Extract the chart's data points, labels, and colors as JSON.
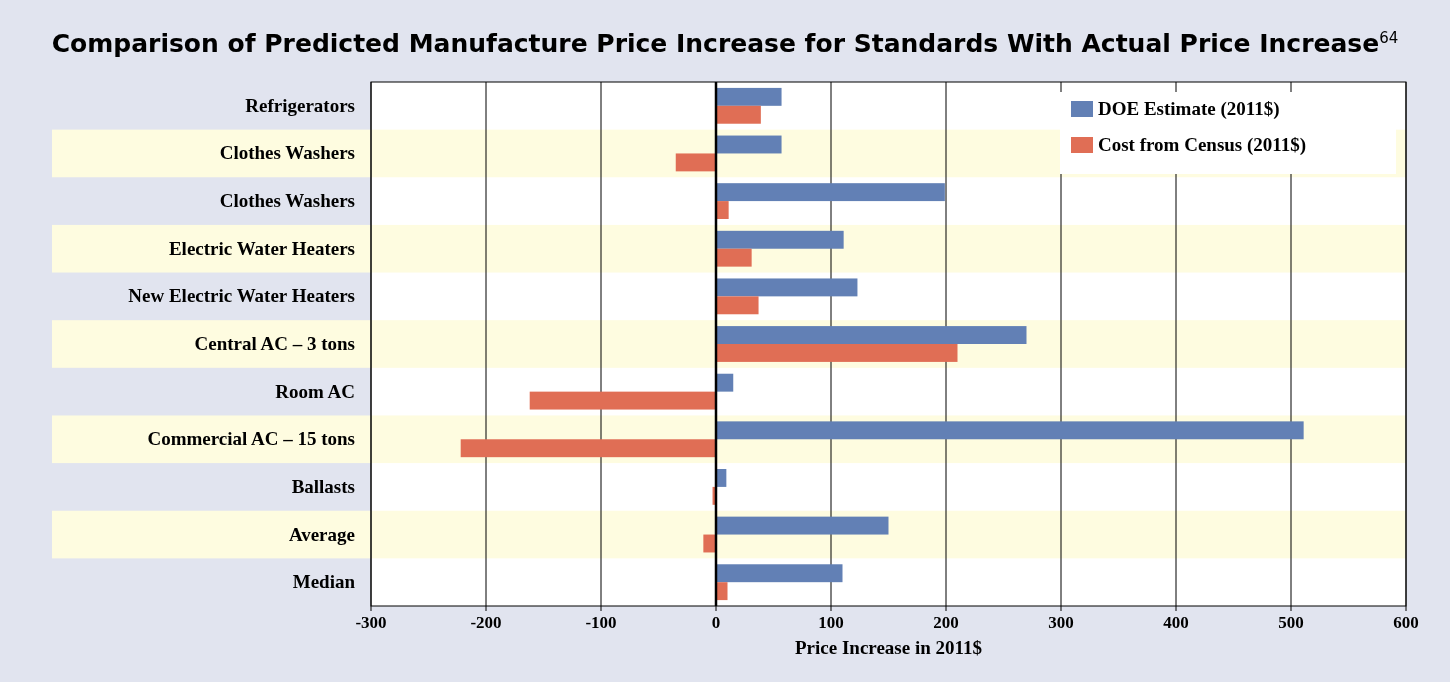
{
  "chart_data": {
    "type": "bar",
    "orientation": "horizontal",
    "title": "Comparison of Predicted Manufacture Price Increase for Standards With Actual Price Increase$^{64}$",
    "xlabel": "Price Increase in 2011$",
    "categories": [
      "Refrigerators",
      "Clothes Washers",
      "Clothes Washers",
      "Electric Water Heaters",
      "New Electric Water Heaters",
      "Central AC – 3 tons",
      "Room AC",
      "Commercial AC – 15 tons",
      "Ballasts",
      "Average",
      "Median"
    ],
    "series": [
      {
        "name": "DOE Estimate (2011$)",
        "color": "#6280b5",
        "values": [
          57,
          57,
          199,
          111,
          123,
          270,
          15,
          511,
          9,
          150,
          110
        ]
      },
      {
        "name": "Cost from Census (2011$)",
        "color": "#e06e55",
        "values": [
          39,
          -35,
          11,
          31,
          37,
          210,
          -162,
          -222,
          -3,
          -11,
          10
        ]
      }
    ],
    "xlim": [
      -300,
      600
    ],
    "xticks": [
      -300,
      -200,
      -100,
      0,
      100,
      200,
      300,
      400,
      500,
      600
    ],
    "grid": "x",
    "legend": "top right"
  }
}
